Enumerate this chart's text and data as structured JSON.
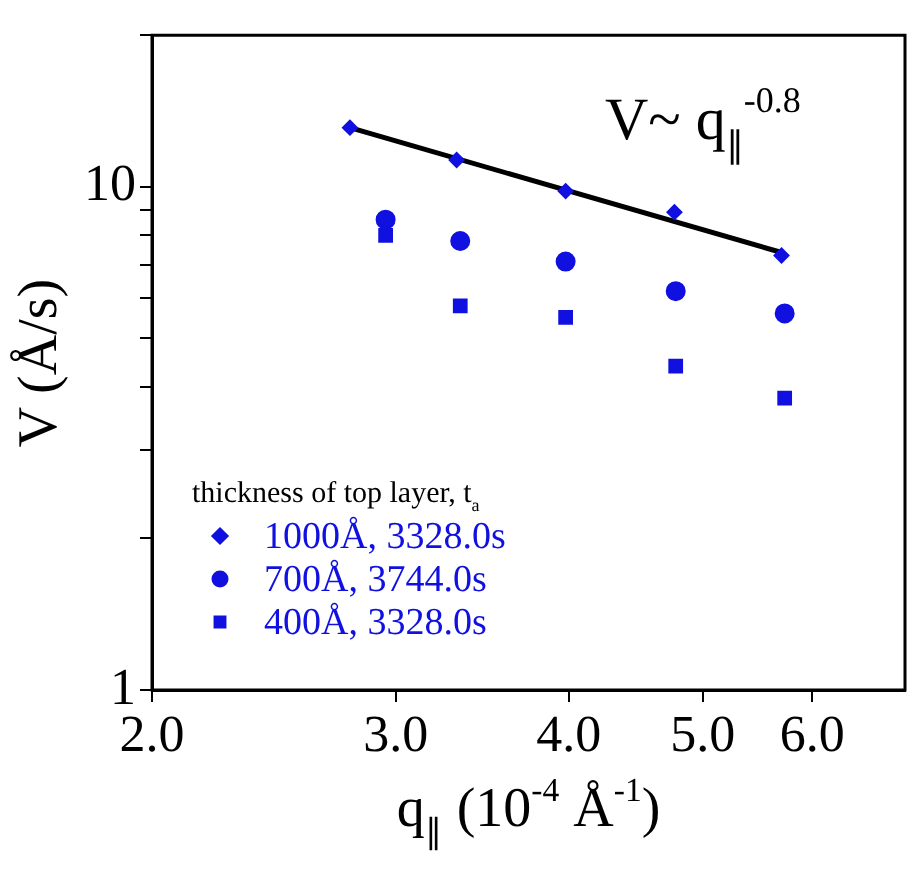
{
  "chart_data": {
    "type": "scatter",
    "xlabel": "q$_{∥}$ (10$^{-4}$ Å$^{-1}$)",
    "ylabel": "V (Å/s)",
    "legend_title": "thickness of top layer, t$_{a}$",
    "annotations": [
      "V~ q$_{∥}$$^{-0.8}$"
    ],
    "log": "xy",
    "grid": false,
    "legend": "bottom left",
    "xlim": [
      2,
      7
    ],
    "xticks": [
      {
        "value": 2,
        "label": "2.0"
      },
      {
        "value": 3,
        "label": "3.0"
      },
      {
        "value": 4,
        "label": "4.0"
      },
      {
        "value": 5,
        "label": "5.0"
      },
      {
        "value": 6,
        "label": "6.0"
      }
    ],
    "ylim": [
      1,
      20
    ],
    "yticks": [
      1,
      {
        "value": 2,
        "label": null
      },
      {
        "value": 3,
        "label": null
      },
      {
        "value": 4,
        "label": null
      },
      {
        "value": 5,
        "label": null
      },
      {
        "value": 6,
        "label": null
      },
      {
        "value": 7,
        "label": null
      },
      {
        "value": 8,
        "label": null
      },
      {
        "value": 9,
        "label": null
      },
      10,
      {
        "value": 20,
        "label": null
      }
    ],
    "series": [
      {
        "name": "1000Å, 3328.0s",
        "color": "#1010e0",
        "marker": "diamond",
        "x": [
          2.78,
          3.32,
          3.98,
          4.77,
          5.7
        ],
        "values": [
          13.1,
          11.3,
          9.8,
          8.9,
          7.3
        ]
      },
      {
        "name": "700Å, 3744.0s",
        "color": "#1010e0",
        "marker": "circle",
        "x": [
          2.95,
          3.34,
          3.98,
          4.78,
          5.73
        ],
        "values": [
          8.6,
          7.8,
          7.1,
          6.2,
          5.6
        ]
      },
      {
        "name": "400Å, 3328.0s",
        "color": "#1010e0",
        "marker": "square",
        "x": [
          2.95,
          3.34,
          3.98,
          4.78,
          5.73
        ],
        "values": [
          8.0,
          5.8,
          5.5,
          4.4,
          3.8
        ]
      },
      {
        "type": "line",
        "color": "#000000",
        "marker": "none",
        "line_style": "solid",
        "x": [
          2.78,
          5.7
        ],
        "values": [
          13.1,
          7.4
        ]
      }
    ]
  }
}
